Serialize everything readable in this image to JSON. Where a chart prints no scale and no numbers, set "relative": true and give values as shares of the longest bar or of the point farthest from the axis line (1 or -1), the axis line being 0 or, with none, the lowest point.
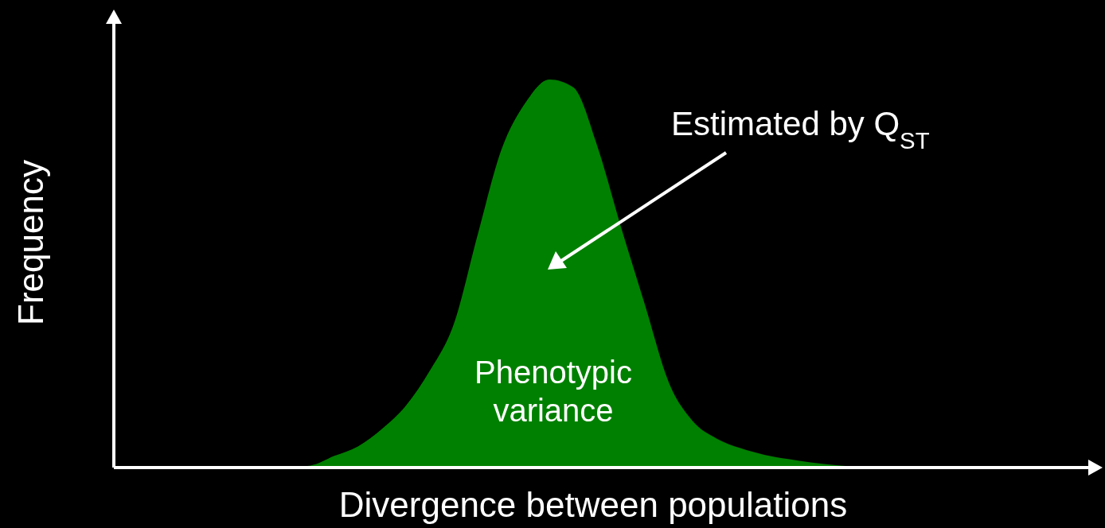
{
  "chart_data": {
    "type": "area",
    "relative": true,
    "xlabel": "Divergence between populations",
    "ylabel": "Frequency",
    "categories": [
      null,
      null,
      null,
      null,
      null,
      null,
      null,
      null,
      null,
      null,
      null,
      null,
      null,
      null,
      null,
      null,
      null,
      null,
      null,
      null,
      null,
      null,
      null,
      null,
      null,
      null,
      null,
      null,
      null,
      null,
      null,
      null,
      null,
      null,
      null,
      null,
      null,
      null,
      null,
      null,
      null
    ],
    "series": [
      {
        "color": "#008000",
        "values": [
          0,
          0,
          0,
          0,
          0,
          0,
          0,
          0,
          0.005,
          0.03,
          0.055,
          0.1,
          0.16,
          0.25,
          0.37,
          0.6,
          0.82,
          0.94,
          1,
          0.98,
          0.83,
          0.62,
          0.42,
          0.22,
          0.12,
          0.075,
          0.05,
          0.033,
          0.022,
          0.013,
          0.006,
          0.002,
          0,
          0,
          0,
          0,
          0,
          0,
          0,
          0,
          0
        ]
      }
    ],
    "annotations": [
      "Estimated by Q$_{ST}$",
      "Phenotypic variance"
    ]
  }
}
